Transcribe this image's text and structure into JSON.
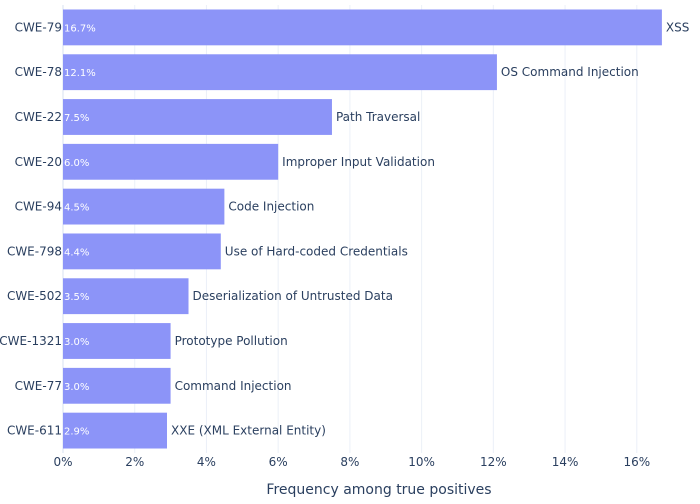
{
  "chart_data": {
    "type": "bar",
    "orientation": "horizontal",
    "title": "",
    "xlabel": "Frequency among true positives",
    "ylabel": "",
    "xlim": [
      0,
      17.4
    ],
    "x_ticks": [
      0,
      2,
      4,
      6,
      8,
      10,
      12,
      14,
      16
    ],
    "x_tick_labels": [
      "0%",
      "2%",
      "4%",
      "6%",
      "8%",
      "10%",
      "12%",
      "14%",
      "16%"
    ],
    "grid": true,
    "bar_color": "#8c94f8",
    "categories": [
      "CWE-79",
      "CWE-78",
      "CWE-22",
      "CWE-20",
      "CWE-94",
      "CWE-798",
      "CWE-502",
      "CWE-1321",
      "CWE-77",
      "CWE-611"
    ],
    "values": [
      16.7,
      12.1,
      7.5,
      6.0,
      4.5,
      4.4,
      3.5,
      3.0,
      3.0,
      2.9
    ],
    "value_labels": [
      "16.7%",
      "12.1%",
      "7.5%",
      "6.0%",
      "4.5%",
      "4.4%",
      "3.5%",
      "3.0%",
      "3.0%",
      "2.9%"
    ],
    "bar_labels": [
      "XSS",
      "OS Command Injection",
      "Path Traversal",
      "Improper Input Validation",
      "Code Injection",
      "Use of Hard-coded Credentials",
      "Deserialization of Untrusted Data",
      "Prototype Pollution",
      "Command Injection",
      "XXE (XML External Entity)"
    ]
  }
}
